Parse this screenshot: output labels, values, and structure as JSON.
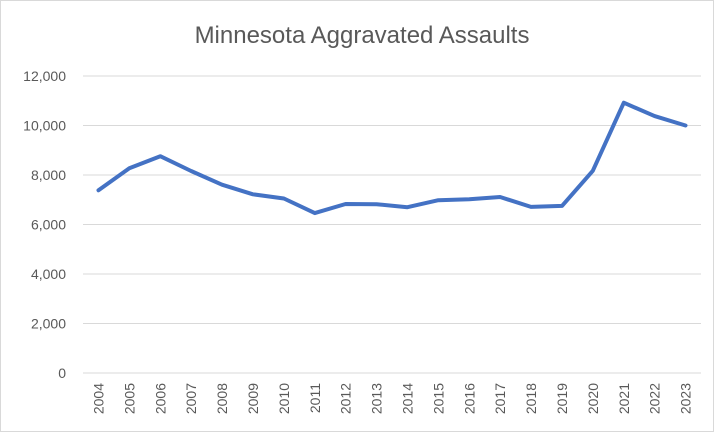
{
  "chart_data": {
    "type": "line",
    "title": "Minnesota Aggravated Assaults",
    "xlabel": "",
    "ylabel": "",
    "categories": [
      "2004",
      "2005",
      "2006",
      "2007",
      "2008",
      "2009",
      "2010",
      "2011",
      "2012",
      "2013",
      "2014",
      "2015",
      "2016",
      "2017",
      "2018",
      "2019",
      "2020",
      "2021",
      "2022",
      "2023"
    ],
    "series": [
      {
        "name": "",
        "color": "#4472c4",
        "values": [
          7380,
          8270,
          8760,
          8160,
          7610,
          7220,
          7050,
          6460,
          6830,
          6820,
          6700,
          6980,
          7020,
          7110,
          6710,
          6750,
          8170,
          10920,
          10380,
          10000
        ]
      }
    ],
    "ylim": [
      0,
      12000
    ],
    "yticks": [
      0,
      2000,
      4000,
      6000,
      8000,
      10000,
      12000
    ],
    "ytick_labels": [
      "0",
      "2,000",
      "4,000",
      "6,000",
      "8,000",
      "10,000",
      "12,000"
    ],
    "grid": true,
    "legend": "none"
  }
}
